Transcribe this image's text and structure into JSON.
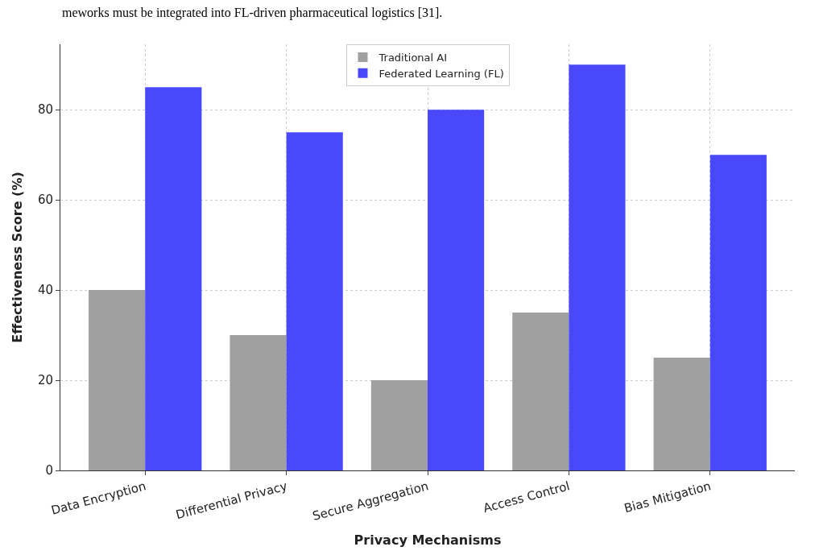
{
  "chart_data": {
    "type": "bar",
    "xlabel": "Privacy Mechanisms",
    "ylabel": "Effectiveness Score (%)",
    "categories": [
      "Data Encryption",
      "Differential Privacy",
      "Secure Aggregation",
      "Access Control",
      "Bias Mitigation"
    ],
    "series": [
      {
        "name": "Traditional AI",
        "color": "#a0a0a0",
        "values": [
          40,
          30,
          20,
          35,
          25
        ]
      },
      {
        "name": "Federated Learning (FL)",
        "color": "#4949fb",
        "values": [
          85,
          75,
          80,
          90,
          70
        ]
      }
    ],
    "ylim": [
      0,
      94.5
    ],
    "yticks": [
      0,
      20,
      40,
      60,
      80
    ],
    "grid": true,
    "legend": "top",
    "annotations": [
      "meworks must be integrated into FL-driven pharmaceutical logistics [31]."
    ]
  }
}
